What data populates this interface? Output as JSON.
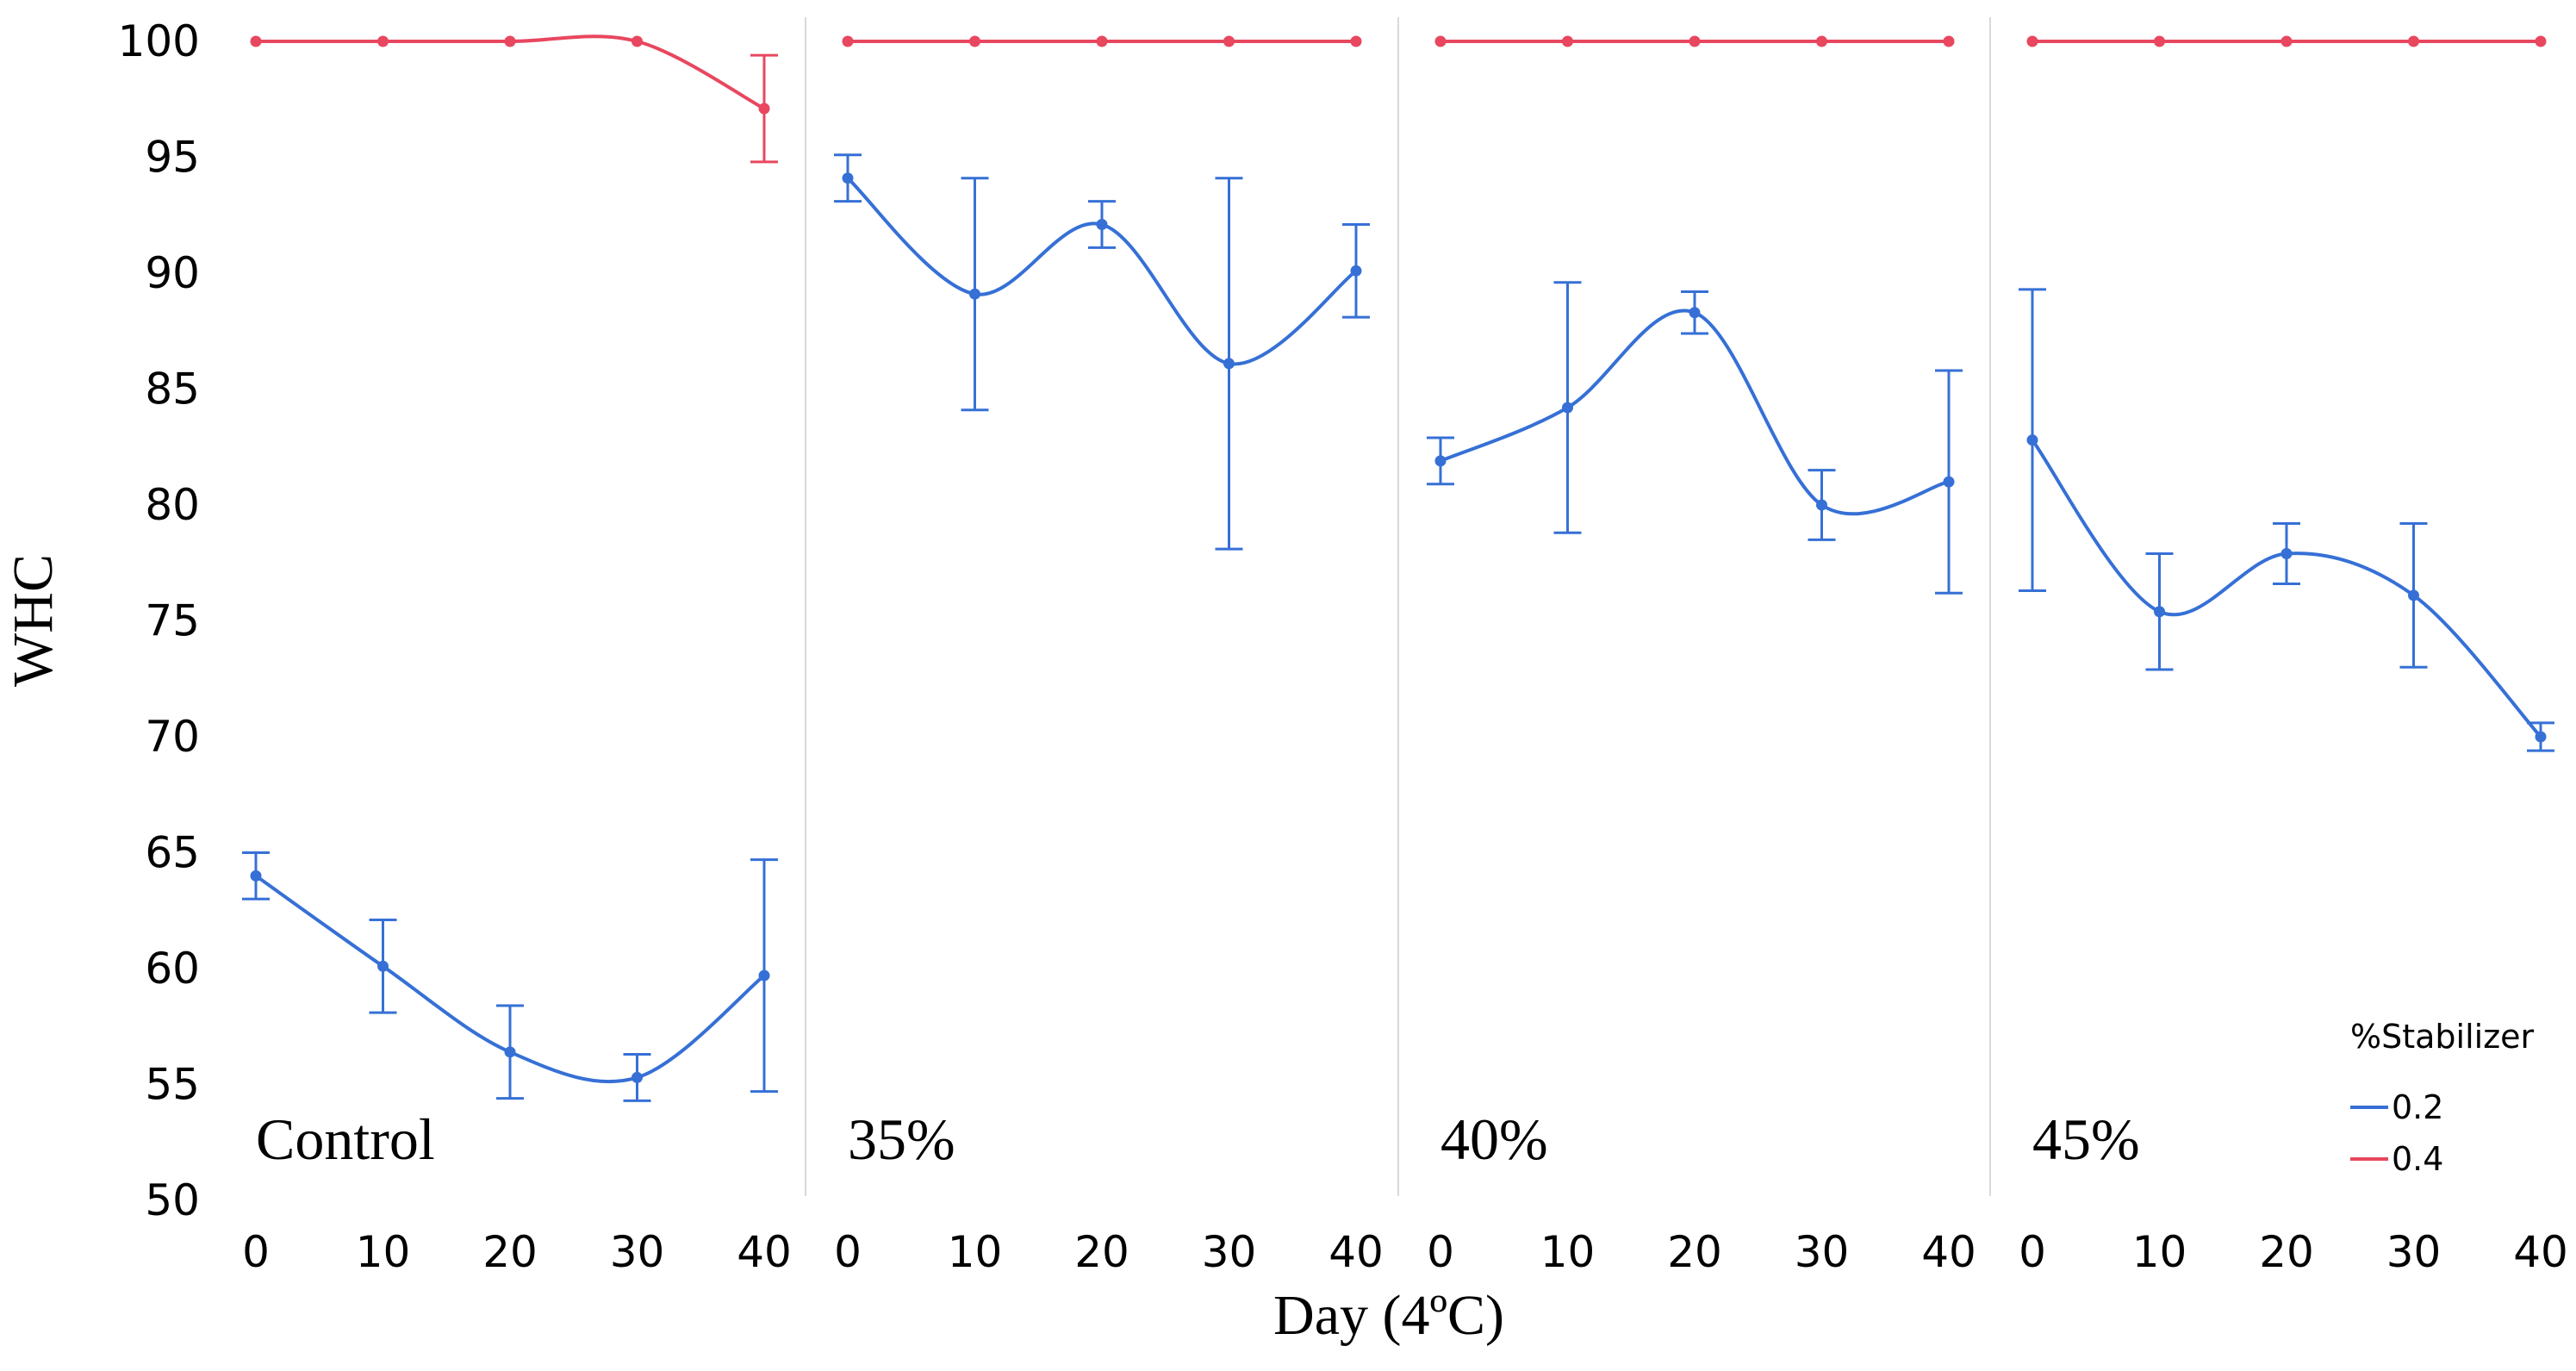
{
  "chart_data": {
    "type": "line",
    "ylabel": "WHC",
    "xlabel": "Day (4ºC)",
    "ylim": [
      50,
      100
    ],
    "yticks": [
      50,
      55,
      60,
      65,
      70,
      75,
      80,
      85,
      90,
      95,
      100
    ],
    "x": [
      0,
      10,
      20,
      30,
      40
    ],
    "xticks": [
      "0",
      "10",
      "20",
      "30",
      "40"
    ],
    "legend": {
      "title": "%Stabilizer",
      "position": "bottom-right",
      "entries": [
        {
          "label": "0.2",
          "color": "#3670d6"
        },
        {
          "label": "0.4",
          "color": "#e8475f"
        }
      ]
    },
    "panels": [
      {
        "label": "Control",
        "series": [
          {
            "name": "0.2",
            "color": "#3670d6",
            "values": [
              64.0,
              60.1,
              56.4,
              55.3,
              59.7
            ],
            "errors": [
              1.0,
              2.0,
              2.0,
              1.0,
              5.0
            ]
          },
          {
            "name": "0.4",
            "color": "#e8475f",
            "values": [
              100.0,
              100.0,
              100.0,
              100.0,
              97.1
            ],
            "errors": [
              0,
              0,
              0,
              0,
              2.3
            ]
          }
        ]
      },
      {
        "label": "35%",
        "series": [
          {
            "name": "0.2",
            "color": "#3670d6",
            "values": [
              94.1,
              89.1,
              92.1,
              86.1,
              90.1
            ],
            "errors": [
              1.0,
              5.0,
              1.0,
              8.0,
              2.0
            ]
          },
          {
            "name": "0.4",
            "color": "#e8475f",
            "values": [
              100.0,
              100.0,
              100.0,
              100.0,
              100.0
            ],
            "errors": [
              0,
              0,
              0,
              0,
              0
            ]
          }
        ]
      },
      {
        "label": "40%",
        "series": [
          {
            "name": "0.2",
            "color": "#3670d6",
            "values": [
              81.9,
              84.2,
              88.3,
              80.0,
              81.0
            ],
            "errors": [
              1.0,
              5.4,
              0.9,
              1.5,
              4.8
            ]
          },
          {
            "name": "0.4",
            "color": "#e8475f",
            "values": [
              100.0,
              100.0,
              100.0,
              100.0,
              100.0
            ],
            "errors": [
              0,
              0,
              0,
              0,
              0
            ]
          }
        ]
      },
      {
        "label": "45%",
        "series": [
          {
            "name": "0.2",
            "color": "#3670d6",
            "values": [
              82.8,
              75.4,
              77.9,
              76.1,
              70.0
            ],
            "errors": [
              6.5,
              2.5,
              1.3,
              3.1,
              0.6
            ]
          },
          {
            "name": "0.4",
            "color": "#e8475f",
            "values": [
              100.0,
              100.0,
              100.0,
              100.0,
              100.0
            ],
            "errors": [
              0,
              0,
              0,
              0,
              0
            ]
          }
        ]
      }
    ]
  }
}
